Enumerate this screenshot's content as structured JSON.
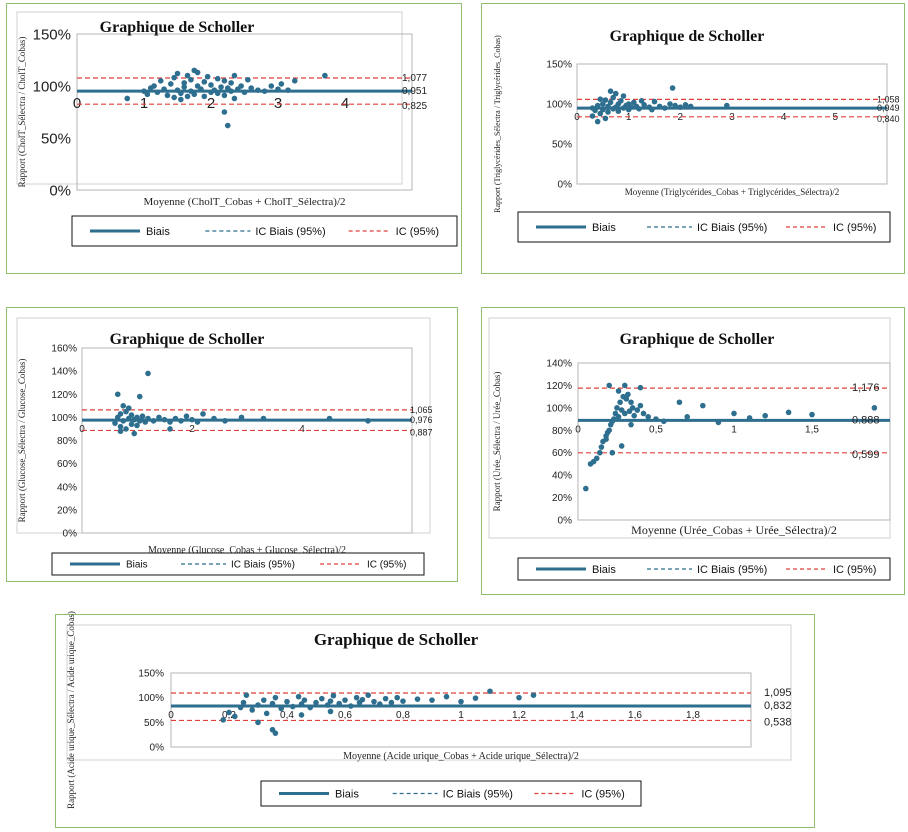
{
  "legend": {
    "bias": "Biais",
    "ic_bias": "IC Biais (95%)",
    "ic": "IC (95%)"
  },
  "colors": {
    "points": "#2e6e8e",
    "bias_line": "#2e6e8e",
    "ic_line": "#e0403a",
    "frame": "#8fbf6f"
  },
  "chart_data": [
    {
      "type": "scatter",
      "title": "Graphique de Scholler",
      "xlabel": "Moyenne (CholT_Cobas + CholT_Sélectra)/2",
      "ylabel": "Rapport (CholT_Sélectra / CholT_Cobas)",
      "xlim": [
        0,
        5
      ],
      "ylim": [
        0,
        1.5
      ],
      "xticks": [
        "0",
        "1",
        "2",
        "3",
        "4"
      ],
      "yticks": [
        "0%",
        "50%",
        "100%",
        "150%"
      ],
      "bias": 0.951,
      "upper": 1.077,
      "lower": 0.825,
      "bias_label": "0,951",
      "upper_label": "1,077",
      "lower_label": "0,825",
      "point_x": [
        0.75,
        1.0,
        1.05,
        1.1,
        1.15,
        1.2,
        1.25,
        1.3,
        1.35,
        1.4,
        1.45,
        1.5,
        1.5,
        1.55,
        1.6,
        1.6,
        1.65,
        1.7,
        1.7,
        1.75,
        1.8,
        1.8,
        1.85,
        1.9,
        1.9,
        1.95,
        2.0,
        2.0,
        2.05,
        2.1,
        2.1,
        2.15,
        2.2,
        2.2,
        2.25,
        2.3,
        2.3,
        2.35,
        2.4,
        2.45,
        2.5,
        2.55,
        2.6,
        2.7,
        2.8,
        2.9,
        3.0,
        3.05,
        3.15,
        3.25,
        3.7,
        2.2,
        2.25,
        1.45,
        1.55,
        1.65,
        1.75,
        2.35
      ],
      "point_y": [
        0.88,
        0.95,
        0.92,
        0.98,
        1.0,
        0.94,
        1.05,
        0.97,
        0.91,
        1.02,
        1.08,
        0.96,
        1.12,
        0.93,
        1.03,
        0.99,
        1.1,
        0.95,
        1.06,
        0.92,
        1.0,
        1.13,
        0.97,
        0.9,
        1.04,
        1.09,
        0.94,
        1.01,
        0.96,
        1.07,
        0.93,
        0.99,
        1.05,
        0.91,
        0.98,
        1.03,
        0.95,
        1.1,
        0.97,
        1.0,
        0.94,
        1.06,
        0.98,
        0.96,
        0.95,
        1.0,
        0.97,
        1.02,
        0.96,
        1.05,
        1.1,
        0.75,
        0.62,
        0.89,
        0.87,
        0.9,
        1.15,
        0.88
      ]
    },
    {
      "type": "scatter",
      "title": "Graphique de Scholler",
      "xlabel": "Moyenne (Triglycérides_Cobas + Triglycérides_Sélectra)/2",
      "ylabel": "Rapport (Triglycérides_Sélectra / Triglycérides_Cobas)",
      "xlim": [
        0,
        6
      ],
      "ylim": [
        0,
        1.5
      ],
      "xticks": [
        "0",
        "1",
        "2",
        "3",
        "4",
        "5"
      ],
      "yticks": [
        "0%",
        "50%",
        "100%",
        "150%"
      ],
      "bias": 0.949,
      "upper": 1.058,
      "lower": 0.84,
      "bias_label": "0,949",
      "upper_label": "1,058",
      "lower_label": "0,840",
      "point_x": [
        0.3,
        0.35,
        0.4,
        0.45,
        0.5,
        0.5,
        0.55,
        0.6,
        0.6,
        0.65,
        0.7,
        0.7,
        0.75,
        0.8,
        0.8,
        0.85,
        0.9,
        0.9,
        0.95,
        1.0,
        1.0,
        1.05,
        1.1,
        1.15,
        1.2,
        1.3,
        1.4,
        1.5,
        1.6,
        1.7,
        1.8,
        1.9,
        2.0,
        2.1,
        2.2,
        1.85,
        0.65,
        0.4,
        0.55,
        0.75,
        1.25,
        1.45,
        2.9,
        0.3,
        0.45
      ],
      "point_y": [
        0.85,
        0.92,
        0.98,
        0.88,
        1.0,
        0.93,
        1.05,
        0.9,
        0.97,
        1.02,
        0.94,
        1.08,
        0.96,
        1.0,
        0.91,
        1.04,
        0.95,
        1.1,
        0.98,
        0.93,
        1.0,
        0.96,
        1.02,
        0.97,
        0.94,
        0.99,
        0.96,
        1.03,
        0.97,
        0.95,
        1.0,
        0.98,
        0.96,
        0.99,
        0.97,
        1.2,
        1.16,
        0.78,
        0.82,
        1.13,
        1.04,
        0.93,
        0.98,
        0.95,
        1.06
      ]
    },
    {
      "type": "scatter",
      "title": "Graphique de Scholler",
      "xlabel": "Moyenne (Glucose_Cobas + Glucose_Sélectra)/2",
      "ylabel": "Rapport (Glucose_Sélectra / Glucose_Cobas)",
      "xlim": [
        0,
        6
      ],
      "ylim": [
        0,
        1.6
      ],
      "xticks": [
        "0",
        "2",
        "4"
      ],
      "yticks": [
        "0%",
        "20%",
        "40%",
        "60%",
        "80%",
        "100%",
        "120%",
        "140%",
        "160%"
      ],
      "bias": 0.976,
      "upper": 1.065,
      "lower": 0.887,
      "bias_label": "0,976",
      "upper_label": "1,065",
      "lower_label": "0,887",
      "point_x": [
        0.6,
        0.65,
        0.7,
        0.7,
        0.75,
        0.8,
        0.8,
        0.85,
        0.9,
        0.9,
        0.95,
        1.0,
        1.0,
        1.05,
        1.1,
        1.15,
        1.2,
        1.3,
        1.4,
        1.5,
        1.6,
        1.7,
        1.8,
        1.9,
        2.0,
        2.1,
        2.2,
        2.4,
        2.6,
        2.9,
        3.3,
        4.5,
        5.2,
        0.65,
        1.2,
        1.05,
        0.7,
        0.85,
        1.6,
        0.75,
        0.95
      ],
      "point_y": [
        0.95,
        1.0,
        0.92,
        1.03,
        0.97,
        1.05,
        0.9,
        0.99,
        1.02,
        0.94,
        0.98,
        1.0,
        0.93,
        0.97,
        1.01,
        0.96,
        0.99,
        0.97,
        1.0,
        0.98,
        0.96,
        0.99,
        0.97,
        1.01,
        0.98,
        0.96,
        1.03,
        0.99,
        0.97,
        1.0,
        0.99,
        0.99,
        0.97,
        1.2,
        1.38,
        1.18,
        0.88,
        1.08,
        0.9,
        1.1,
        0.86
      ]
    },
    {
      "type": "scatter",
      "title": "Graphique de Scholler",
      "xlabel": "Moyenne (Urée_Cobas + Urée_Sélectra)/2",
      "ylabel": "Rapport (Urée_Sélectra / Urée_Cobas)",
      "xlim": [
        0,
        2
      ],
      "ylim": [
        0,
        1.4
      ],
      "xticks": [
        "0",
        "0,5",
        "1",
        "1,5"
      ],
      "yticks": [
        "0%",
        "20%",
        "40%",
        "60%",
        "80%",
        "100%",
        "120%",
        "140%"
      ],
      "bias": 0.888,
      "upper": 1.176,
      "lower": 0.599,
      "bias_label": "0.888",
      "upper_label": "1,176",
      "lower_label": "0,599",
      "point_x": [
        0.05,
        0.08,
        0.1,
        0.12,
        0.14,
        0.15,
        0.16,
        0.18,
        0.19,
        0.2,
        0.21,
        0.22,
        0.23,
        0.24,
        0.25,
        0.26,
        0.27,
        0.28,
        0.29,
        0.3,
        0.31,
        0.32,
        0.33,
        0.34,
        0.35,
        0.36,
        0.38,
        0.4,
        0.42,
        0.45,
        0.5,
        0.55,
        0.65,
        0.7,
        0.8,
        0.9,
        1.0,
        1.1,
        1.2,
        1.35,
        1.5,
        1.9,
        0.2,
        0.22,
        0.26,
        0.3,
        0.34,
        0.4,
        0.18,
        0.28
      ],
      "point_y": [
        0.28,
        0.5,
        0.52,
        0.55,
        0.6,
        0.65,
        0.7,
        0.72,
        0.78,
        0.8,
        0.85,
        0.88,
        0.9,
        0.95,
        1.0,
        0.92,
        1.05,
        0.98,
        1.1,
        0.95,
        1.08,
        1.12,
        0.97,
        1.05,
        1.0,
        0.93,
        0.98,
        1.02,
        0.95,
        0.92,
        0.9,
        0.88,
        1.05,
        0.92,
        1.02,
        0.87,
        0.95,
        0.91,
        0.93,
        0.96,
        0.94,
        1.0,
        1.2,
        0.6,
        1.15,
        1.2,
        0.85,
        1.18,
        0.75,
        0.66
      ]
    },
    {
      "type": "scatter",
      "title": "Graphique de Scholler",
      "xlabel": "Moyenne (Acide urique_Cobas + Acide urique_Sélectra)/2",
      "ylabel": "Rapport (Acide urique_Sélectra / Acide urique_Cobas)",
      "xlim": [
        0,
        2
      ],
      "ylim": [
        0,
        1.5
      ],
      "xticks": [
        "0",
        "0,2",
        "0,4",
        "0,6",
        "0,8",
        "1",
        "1,2",
        "1,4",
        "1,6",
        "1,8"
      ],
      "yticks": [
        "0%",
        "50%",
        "100%",
        "150%"
      ],
      "bias": 0.832,
      "upper": 1.095,
      "lower": 0.538,
      "bias_label": "0,832",
      "upper_label": "1,095",
      "lower_label": "0,538",
      "point_x": [
        0.18,
        0.2,
        0.22,
        0.24,
        0.25,
        0.26,
        0.28,
        0.3,
        0.32,
        0.33,
        0.35,
        0.36,
        0.38,
        0.4,
        0.42,
        0.44,
        0.45,
        0.46,
        0.48,
        0.5,
        0.52,
        0.54,
        0.55,
        0.56,
        0.58,
        0.6,
        0.62,
        0.64,
        0.65,
        0.66,
        0.68,
        0.7,
        0.72,
        0.74,
        0.76,
        0.78,
        0.8,
        0.85,
        0.9,
        0.95,
        1.0,
        1.05,
        1.1,
        1.2,
        1.25,
        0.36,
        0.35,
        0.3,
        0.45,
        0.55
      ],
      "point_y": [
        0.55,
        0.7,
        0.62,
        0.8,
        0.9,
        1.05,
        0.75,
        0.85,
        0.95,
        0.68,
        0.88,
        1.0,
        0.78,
        0.92,
        0.82,
        1.02,
        0.87,
        0.95,
        0.8,
        0.9,
        0.98,
        0.85,
        0.93,
        1.04,
        0.88,
        0.95,
        0.83,
        1.0,
        0.9,
        0.96,
        1.05,
        0.92,
        0.87,
        0.98,
        0.9,
        1.0,
        0.93,
        0.97,
        0.95,
        1.02,
        0.92,
        0.99,
        1.13,
        1.0,
        1.05,
        0.28,
        0.35,
        0.5,
        0.65,
        0.72
      ]
    }
  ]
}
